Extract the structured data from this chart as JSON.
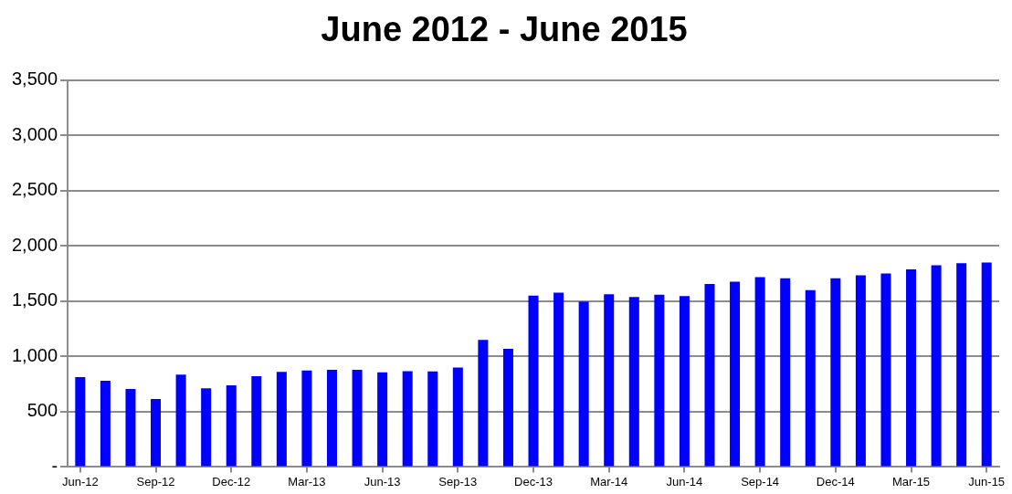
{
  "chart_data": {
    "type": "bar",
    "title": "June 2012 - June 2015",
    "categories": [
      "Jun-12",
      null,
      null,
      "Sep-12",
      null,
      null,
      "Dec-12",
      null,
      null,
      "Mar-13",
      null,
      null,
      "Jun-13",
      null,
      null,
      "Sep-13",
      null,
      null,
      "Dec-13",
      null,
      null,
      "Mar-14",
      null,
      null,
      "Jun-14",
      null,
      null,
      "Sep-14",
      null,
      null,
      "Dec-14",
      null,
      null,
      "Mar-15",
      null,
      null,
      "Jun-15"
    ],
    "values": [
      812,
      779,
      706,
      615,
      836,
      712,
      739,
      821,
      861,
      873,
      879,
      879,
      855,
      867,
      864,
      900,
      1150,
      1068,
      1549,
      1577,
      1497,
      1562,
      1537,
      1558,
      1546,
      1654,
      1676,
      1716,
      1707,
      1599,
      1707,
      1734,
      1750,
      1787,
      1824,
      1842,
      1849
    ],
    "color": "#0000ff",
    "ylim": [
      0,
      3500
    ],
    "yticks": [
      {
        "value": 0,
        "label": "-"
      },
      {
        "value": 500,
        "label": "500"
      },
      {
        "value": 1000,
        "label": "1,000"
      },
      {
        "value": 1500,
        "label": "1,500"
      },
      {
        "value": 2000,
        "label": "2,000"
      },
      {
        "value": 2500,
        "label": "2,500"
      },
      {
        "value": 3000,
        "label": "3,000"
      },
      {
        "value": 3500,
        "label": "3,500"
      }
    ],
    "grid": "y",
    "legend": false
  }
}
